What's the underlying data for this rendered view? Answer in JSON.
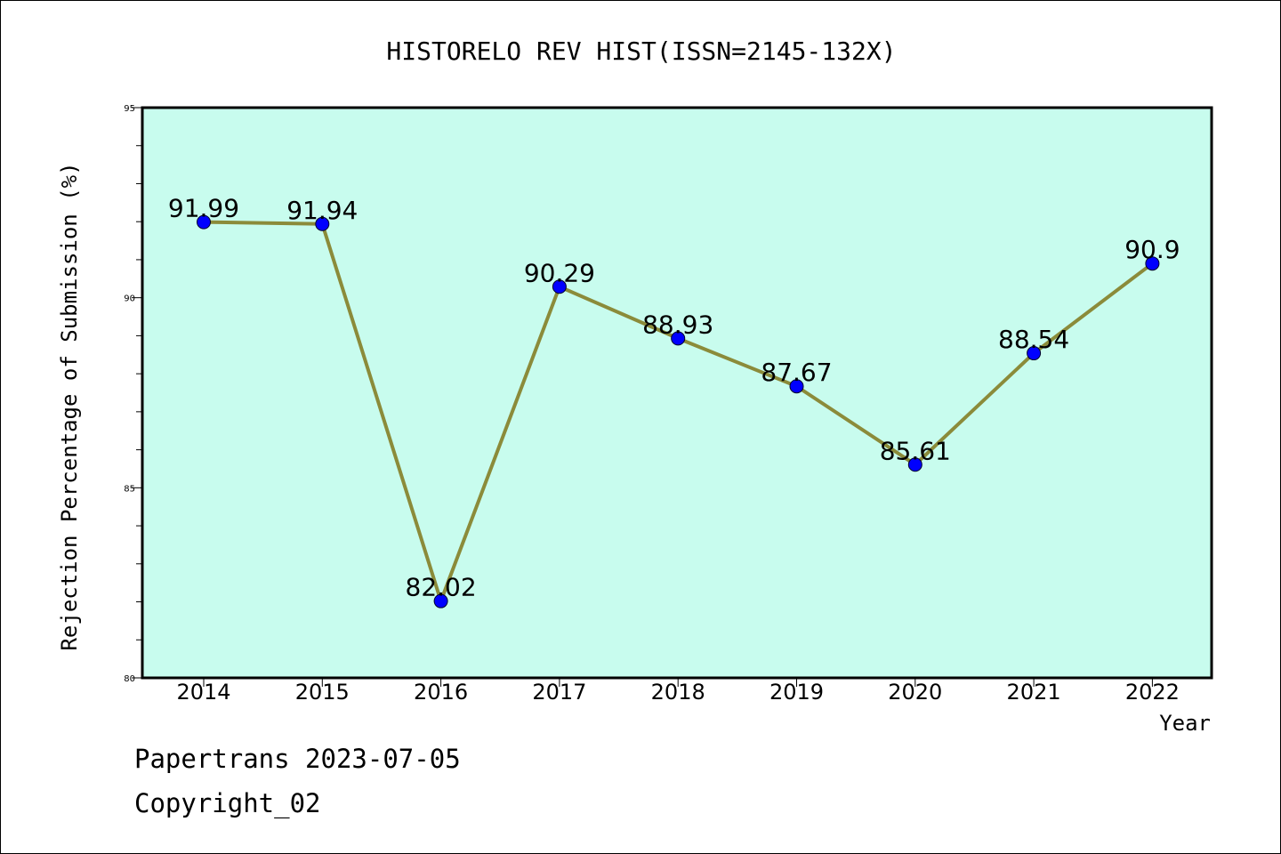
{
  "chart_data": {
    "type": "line",
    "title": "HISTORELO REV HIST(ISSN=2145-132X)",
    "xlabel": "Year",
    "ylabel": "Rejection Percentage of Submission (%)",
    "x": [
      "2014",
      "2015",
      "2016",
      "2017",
      "2018",
      "2019",
      "2020",
      "2021",
      "2022"
    ],
    "series": [
      {
        "values": [
          91.99,
          91.94,
          82.02,
          90.29,
          88.93,
          87.67,
          85.61,
          88.54,
          90.9
        ],
        "labels": [
          "91.99",
          "91.94",
          "82.02",
          "90.29",
          "88.93",
          "87.67",
          "85.61",
          "88.54",
          "90.9"
        ]
      }
    ],
    "ylim": [
      80,
      95
    ],
    "yticks": [
      "80",
      "85",
      "90",
      "95"
    ],
    "grid": false,
    "colors": {
      "plot_background": "#c8fcee",
      "line": "#8b8b3a",
      "marker": "#0000ff"
    }
  },
  "footer": {
    "line1": "Papertrans 2023-07-05",
    "line2": "Copyright_02"
  }
}
